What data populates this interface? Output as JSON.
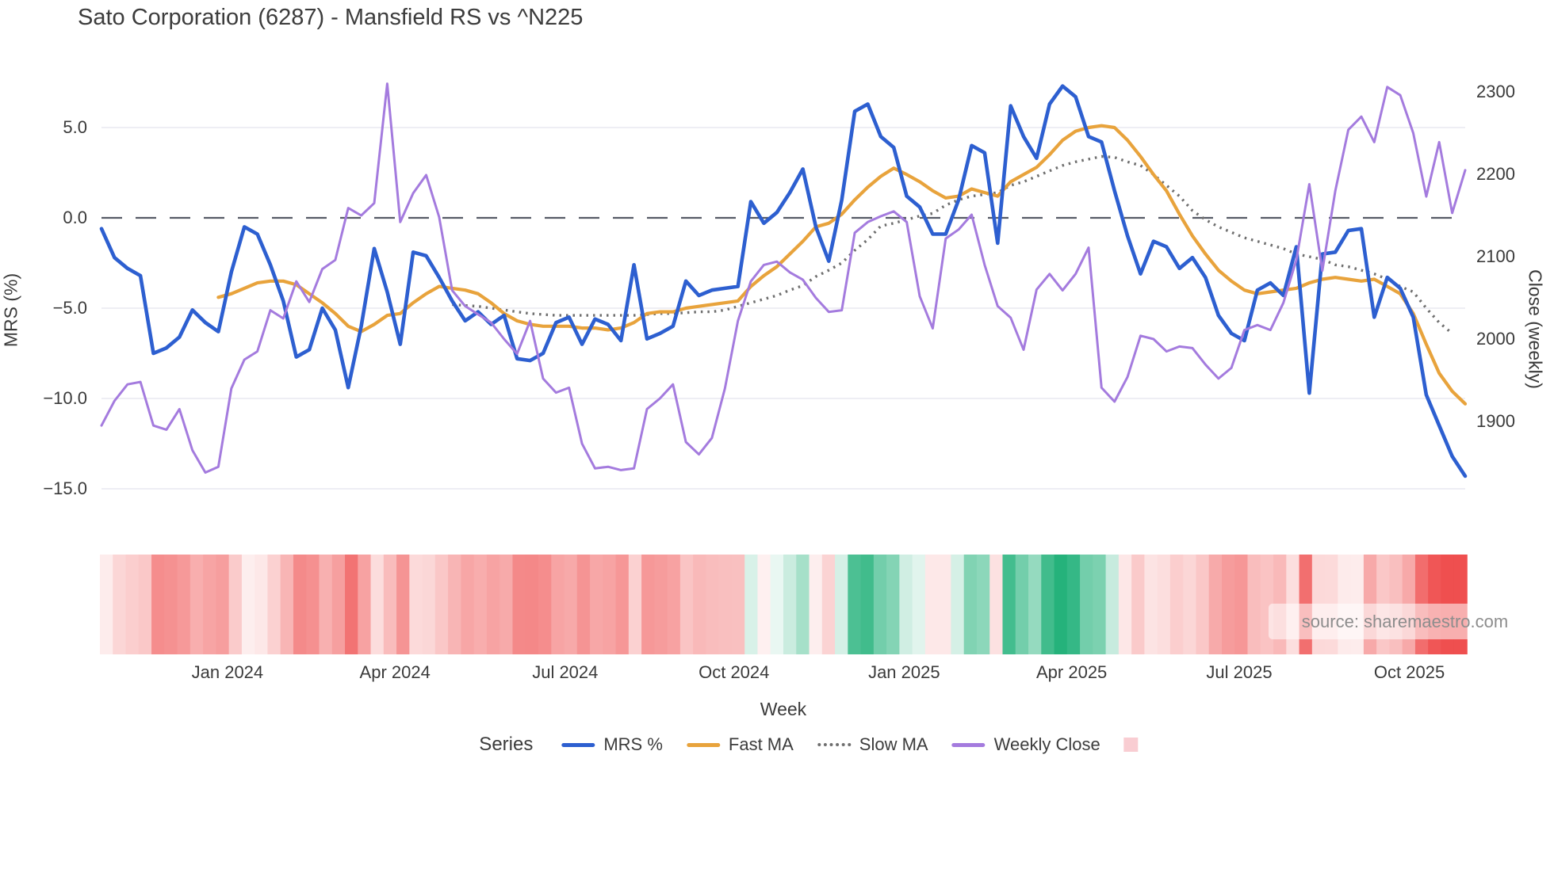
{
  "title": "Sato Corporation (6287) - Mansfield RS vs ^N225",
  "watermark": "source: sharemaestro.com",
  "axes": {
    "left": {
      "label": "MRS (%)",
      "ticks": [
        5.0,
        0.0,
        -5.0,
        -10.0,
        -15.0
      ],
      "tick_labels": [
        "5.0",
        "0.0",
        "−5.0",
        "−10.0",
        "−15.0"
      ],
      "range": [
        -16.5,
        8.8
      ]
    },
    "right": {
      "label": "Close (weekly)",
      "ticks": [
        2300,
        2200,
        2100,
        2000,
        1900
      ],
      "tick_labels": [
        "2300",
        "2200",
        "2100",
        "2000",
        "1900"
      ],
      "range": [
        1815,
        2400
      ]
    },
    "x": {
      "label": "Week",
      "ticks": [
        {
          "label": "Jan 2024",
          "week": 9.7
        },
        {
          "label": "Apr 2024",
          "week": 22.6
        },
        {
          "label": "Jul 2024",
          "week": 35.7
        },
        {
          "label": "Oct 2024",
          "week": 48.7
        },
        {
          "label": "Jan 2025",
          "week": 61.8
        },
        {
          "label": "Apr 2025",
          "week": 74.7
        },
        {
          "label": "Jul 2025",
          "week": 87.6
        },
        {
          "label": "Oct 2025",
          "week": 100.7
        }
      ]
    }
  },
  "legend": {
    "series_label": "Series",
    "items": [
      {
        "label": "MRS %",
        "swatch": "line",
        "color": "#2d5fd0"
      },
      {
        "label": "Fast MA",
        "swatch": "line",
        "color": "#e8a33c"
      },
      {
        "label": "Slow MA",
        "swatch": "dotted",
        "color": "#6f6f6f"
      },
      {
        "label": "Weekly Close",
        "swatch": "line",
        "color": "#a47bde"
      },
      {
        "label": "",
        "swatch": "square",
        "color": "#f9cdd2"
      }
    ]
  },
  "colors": {
    "mrs": "#2d5fd0",
    "fast_ma": "#e8a33c",
    "slow_ma": "#6f6f6f",
    "weekly_close": "#a47bde",
    "zero_line": "#565b66",
    "gridline": "#e9e9f1",
    "heat_red": "#ef4f4f",
    "heat_green": "#1fb078",
    "background": "#ffffff"
  },
  "chart_data": {
    "type": "line",
    "x_unit": "week",
    "n_points": 106,
    "grid": true,
    "zero_reference_line": 0,
    "series": [
      {
        "name": "MRS %",
        "axis": "left",
        "color": "#2d5fd0",
        "width": 4.6,
        "style": "solid",
        "start_week": 0,
        "values": [
          -0.6,
          -2.2,
          -2.8,
          -3.2,
          -7.5,
          -7.2,
          -6.6,
          -5.1,
          -5.8,
          -6.3,
          -3.0,
          -0.5,
          -0.9,
          -2.6,
          -4.6,
          -7.7,
          -7.3,
          -5.0,
          -6.2,
          -9.4,
          -6.0,
          -1.7,
          -4.1,
          -7.0,
          -1.9,
          -2.1,
          -3.3,
          -4.6,
          -5.7,
          -5.2,
          -5.9,
          -5.4,
          -7.8,
          -7.9,
          -7.5,
          -5.8,
          -5.5,
          -7.0,
          -5.6,
          -5.9,
          -6.8,
          -2.6,
          -6.7,
          -6.4,
          -6.0,
          -3.5,
          -4.3,
          -4.0,
          -3.9,
          -3.8,
          0.9,
          -0.3,
          0.3,
          1.4,
          2.7,
          -0.5,
          -2.4,
          1.0,
          5.9,
          6.3,
          4.5,
          3.9,
          1.2,
          0.6,
          -0.9,
          -0.9,
          1.0,
          4.0,
          3.6,
          -1.4,
          6.2,
          4.5,
          3.3,
          6.3,
          7.3,
          6.7,
          4.5,
          4.2,
          1.5,
          -1.0,
          -3.1,
          -1.3,
          -1.6,
          -2.8,
          -2.2,
          -3.3,
          -5.4,
          -6.4,
          -6.8,
          -4.0,
          -3.6,
          -4.3,
          -1.6,
          -9.7,
          -2.0,
          -1.9,
          -0.7,
          -0.6,
          -5.5,
          -3.3,
          -3.9,
          -5.5,
          -9.8,
          -11.5,
          -13.2,
          -14.3
        ]
      },
      {
        "name": "Fast MA",
        "axis": "left",
        "color": "#e8a33c",
        "width": 4.2,
        "style": "solid",
        "start_week": 9,
        "values": [
          -4.4,
          -4.2,
          -3.9,
          -3.6,
          -3.5,
          -3.5,
          -3.7,
          -4.2,
          -4.7,
          -5.3,
          -6.0,
          -6.3,
          -5.9,
          -5.4,
          -5.3,
          -4.7,
          -4.2,
          -3.8,
          -3.9,
          -4.0,
          -4.2,
          -4.7,
          -5.3,
          -5.7,
          -5.9,
          -6.0,
          -6.0,
          -6.0,
          -6.1,
          -6.1,
          -6.2,
          -6.1,
          -5.8,
          -5.3,
          -5.2,
          -5.2,
          -5.0,
          -4.9,
          -4.8,
          -4.7,
          -4.6,
          -3.8,
          -3.2,
          -2.7,
          -2.0,
          -1.3,
          -0.5,
          -0.3,
          0.2,
          1.0,
          1.7,
          2.3,
          2.75,
          2.4,
          2.0,
          1.5,
          1.1,
          1.2,
          1.6,
          1.4,
          1.2,
          2.0,
          2.4,
          2.8,
          3.5,
          4.3,
          4.8,
          5.0,
          5.1,
          5.0,
          4.3,
          3.4,
          2.4,
          1.5,
          0.2,
          -1.0,
          -2.0,
          -2.9,
          -3.5,
          -4.0,
          -4.2,
          -4.1,
          -4.0,
          -3.9,
          -3.6,
          -3.4,
          -3.3,
          -3.4,
          -3.5,
          -3.4,
          -3.8,
          -4.2,
          -5.3,
          -7.0,
          -8.6,
          -9.6,
          -10.3
        ]
      },
      {
        "name": "Slow MA",
        "axis": "left",
        "color": "#6f6f6f",
        "width": 3.4,
        "style": "dotted",
        "start_week": 27,
        "values": [
          -4.8,
          -4.85,
          -4.9,
          -5.0,
          -5.1,
          -5.2,
          -5.3,
          -5.35,
          -5.4,
          -5.4,
          -5.4,
          -5.4,
          -5.4,
          -5.4,
          -5.4,
          -5.35,
          -5.3,
          -5.3,
          -5.25,
          -5.2,
          -5.2,
          -5.1,
          -4.9,
          -4.7,
          -4.5,
          -4.3,
          -4.0,
          -3.75,
          -3.25,
          -2.9,
          -2.5,
          -1.8,
          -1.2,
          -0.45,
          -0.3,
          -0.1,
          0.1,
          0.25,
          0.7,
          1.0,
          1.2,
          1.3,
          1.4,
          1.8,
          2.0,
          2.3,
          2.6,
          2.9,
          3.1,
          3.25,
          3.4,
          3.35,
          3.1,
          2.9,
          2.4,
          1.8,
          1.2,
          0.4,
          -0.1,
          -0.5,
          -0.8,
          -1.1,
          -1.3,
          -1.5,
          -1.7,
          -2.0,
          -2.15,
          -2.3,
          -2.6,
          -2.7,
          -2.9,
          -3.1,
          -3.4,
          -3.8,
          -4.1,
          -5.0,
          -5.8,
          -6.4
        ]
      },
      {
        "name": "Weekly Close",
        "axis": "right",
        "color": "#a47bde",
        "width": 3.0,
        "style": "solid",
        "start_week": 0,
        "values": [
          1895,
          1925,
          1945,
          1948,
          1895,
          1890,
          1915,
          1865,
          1838,
          1845,
          1940,
          1975,
          1985,
          2035,
          2025,
          2070,
          2045,
          2085,
          2096,
          2159,
          2150,
          2165,
          2310,
          2142,
          2177,
          2199,
          2148,
          2059,
          2040,
          2030,
          2020,
          2000,
          1982,
          2022,
          1952,
          1935,
          1941,
          1873,
          1843,
          1845,
          1841,
          1843,
          1915,
          1928,
          1945,
          1875,
          1860,
          1880,
          1940,
          2022,
          2070,
          2090,
          2094,
          2081,
          2072,
          2050,
          2033,
          2035,
          2129,
          2142,
          2149,
          2155,
          2142,
          2052,
          2013,
          2122,
          2133,
          2151,
          2090,
          2040,
          2026,
          1987,
          2060,
          2079,
          2059,
          2079,
          2111,
          1941,
          1924,
          1954,
          2004,
          2000,
          1985,
          1991,
          1989,
          1969,
          1952,
          1965,
          2011,
          2017,
          2011,
          2044,
          2096,
          2188,
          2083,
          2180,
          2254,
          2270,
          2239,
          2306,
          2296,
          2250,
          2173,
          2239,
          2153,
          2205
        ]
      }
    ],
    "heatmap": {
      "derived_from": "MRS %",
      "description": "weekly strip below chart; red intensity for negative MRS, green intensity for positive MRS",
      "negative_color": "#ef4f4f",
      "positive_color": "#1fb078",
      "negative_saturation_at": -12,
      "positive_saturation_at": 7.5
    }
  }
}
